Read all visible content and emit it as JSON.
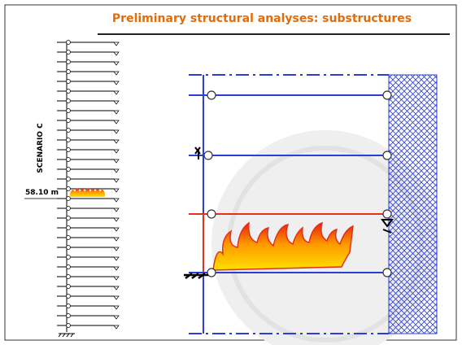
{
  "header": {
    "title": "Preliminary structural analyses: substructures"
  },
  "labels": {
    "scenario": "SCENARIO C",
    "elevation": "58.10 m"
  }
}
